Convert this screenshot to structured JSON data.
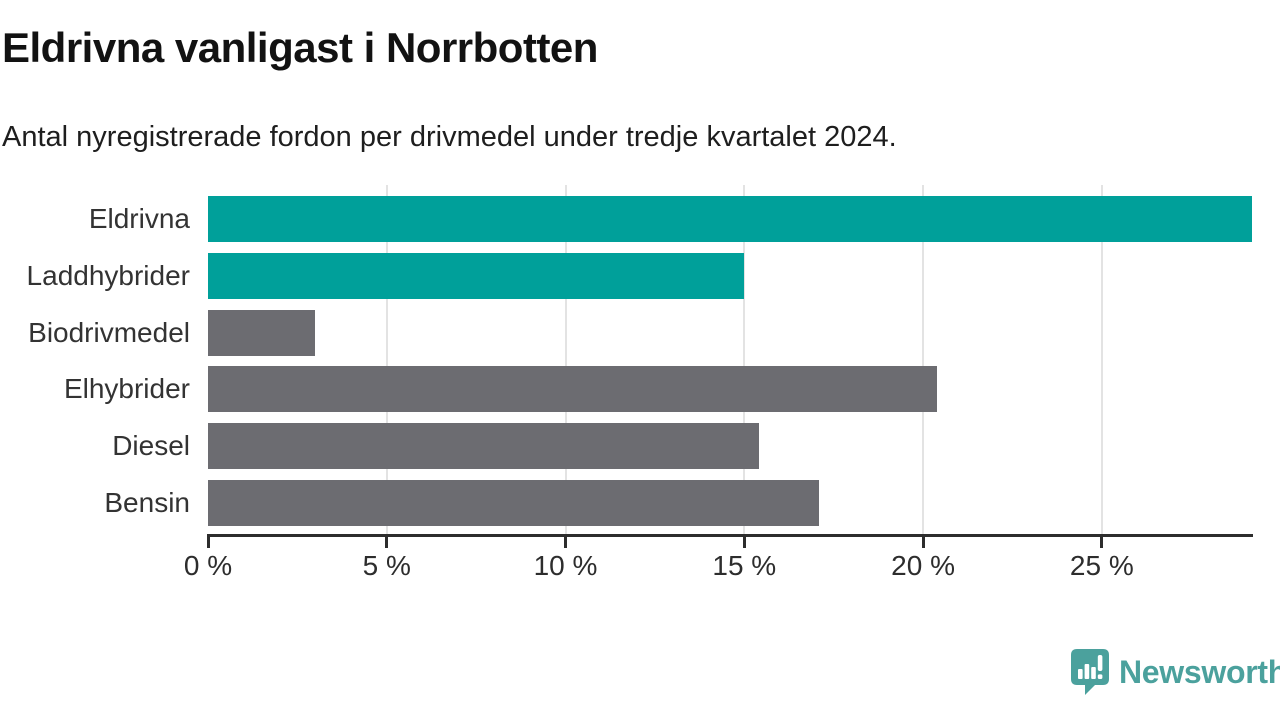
{
  "header": {
    "title": "Eldrivna vanligast i Norrbotten",
    "subtitle": "Antal nyregistrerade fordon per drivmedel under tredje kvartalet 2024."
  },
  "chart_data": {
    "type": "bar",
    "orientation": "horizontal",
    "title": "Eldrivna vanligast i Norrbotten",
    "subtitle": "Antal nyregistrerade fordon per drivmedel under tredje kvartalet 2024.",
    "categories": [
      "Eldrivna",
      "Laddhybrider",
      "Biodrivmedel",
      "Elhybrider",
      "Diesel",
      "Bensin"
    ],
    "values": [
      29.2,
      15.0,
      3.0,
      20.4,
      15.4,
      17.1
    ],
    "highlighted": [
      true,
      true,
      false,
      false,
      false,
      false
    ],
    "unit": "%",
    "xlim": [
      0,
      29.2
    ],
    "x_ticks": [
      0,
      5,
      10,
      15,
      20,
      25
    ],
    "x_tick_labels": [
      "0 %",
      "5 %",
      "10 %",
      "15 %",
      "20 %",
      "25 %"
    ],
    "grid": "vertical-gridlines-at-ticks",
    "legend": "none",
    "colors": {
      "highlight": "#00a09a",
      "default": "#6c6c71",
      "gridline": "#e3e3e3",
      "axis": "#2d2d2d"
    }
  },
  "footer": {
    "brand": "Newsworthy",
    "logo_icon": "speech-bubble-bar-chart-exclamation",
    "brand_color": "#4ba19d"
  }
}
